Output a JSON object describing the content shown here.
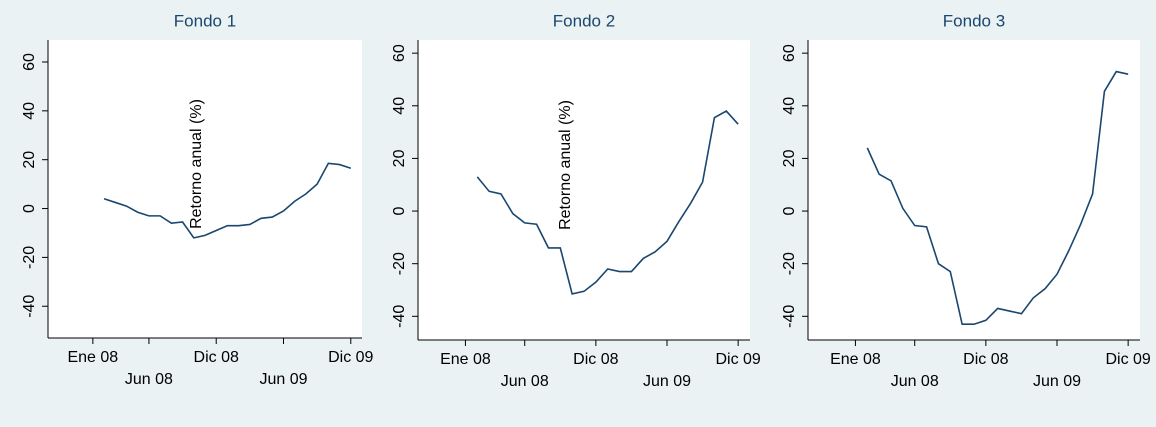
{
  "chart_data": [
    {
      "type": "line",
      "title": "Fondo 1",
      "y_label": "Retorno anual (%)",
      "x": [
        "2008-02",
        "2008-03",
        "2008-04",
        "2008-05",
        "2008-06",
        "2008-07",
        "2008-08",
        "2008-09",
        "2008-10",
        "2008-11",
        "2008-12",
        "2009-01",
        "2009-02",
        "2009-03",
        "2009-04",
        "2009-05",
        "2009-06",
        "2009-07",
        "2009-08",
        "2009-09",
        "2009-10",
        "2009-11",
        "2009-12"
      ],
      "series": [
        {
          "color": "#1a476f",
          "values": [
            4,
            2.5,
            1,
            -1.5,
            -3,
            -3,
            -6,
            -5.5,
            -12,
            -11,
            -9,
            -7,
            -7,
            -6.5,
            -4,
            -3.5,
            -1,
            3,
            6,
            10,
            18.5,
            18,
            16.5
          ]
        }
      ],
      "xlim": [
        "2007-09",
        "2010-01"
      ],
      "xticks": [
        {
          "value": "2008-01",
          "label": "Ene 08"
        },
        {
          "value": "2008-06",
          "label": "Jun 08"
        },
        {
          "value": "2008-12",
          "label": "Dic 08"
        },
        {
          "value": "2009-06",
          "label": "Jun 09"
        },
        {
          "value": "2009-12",
          "label": "Dic 09"
        }
      ],
      "ylim": [
        -53,
        69
      ],
      "yticks": [
        -40,
        -20,
        0,
        20,
        40,
        60
      ],
      "grid": false
    },
    {
      "type": "line",
      "title": "Fondo 2",
      "y_label": "Retorno anual (%)",
      "x": [
        "2008-02",
        "2008-03",
        "2008-04",
        "2008-05",
        "2008-06",
        "2008-07",
        "2008-08",
        "2008-09",
        "2008-10",
        "2008-11",
        "2008-12",
        "2009-01",
        "2009-02",
        "2009-03",
        "2009-04",
        "2009-05",
        "2009-06",
        "2009-07",
        "2009-08",
        "2009-09",
        "2009-10",
        "2009-11",
        "2009-12"
      ],
      "series": [
        {
          "color": "#1a476f",
          "values": [
            13,
            7.5,
            6.5,
            -1,
            -4.5,
            -5,
            -14,
            -14,
            -31.5,
            -30.5,
            -27,
            -22,
            -23,
            -23,
            -18,
            -15.5,
            -11.5,
            -4,
            3,
            11,
            35.5,
            38,
            33
          ]
        }
      ],
      "xlim": [
        "2007-09",
        "2010-01"
      ],
      "xticks": [
        {
          "value": "2008-01",
          "label": "Ene 08"
        },
        {
          "value": "2008-06",
          "label": "Jun 08"
        },
        {
          "value": "2008-12",
          "label": "Dic 08"
        },
        {
          "value": "2009-06",
          "label": "Jun 09"
        },
        {
          "value": "2009-12",
          "label": "Dic 09"
        }
      ],
      "ylim": [
        -49,
        65
      ],
      "yticks": [
        -40,
        -20,
        0,
        20,
        40,
        60
      ],
      "grid": false
    },
    {
      "type": "line",
      "title": "Fondo 3",
      "x": [
        "2008-02",
        "2008-03",
        "2008-04",
        "2008-05",
        "2008-06",
        "2008-07",
        "2008-08",
        "2008-09",
        "2008-10",
        "2008-11",
        "2008-12",
        "2009-01",
        "2009-02",
        "2009-03",
        "2009-04",
        "2009-05",
        "2009-06",
        "2009-07",
        "2009-08",
        "2009-09",
        "2009-10",
        "2009-11",
        "2009-12"
      ],
      "series": [
        {
          "color": "#1a476f",
          "values": [
            24,
            14,
            11.5,
            1,
            -5.5,
            -6,
            -20,
            -23,
            -43,
            -43,
            -41.5,
            -37,
            -38,
            -39,
            -33,
            -29.5,
            -24,
            -15,
            -5,
            6.5,
            45.5,
            53,
            52
          ]
        }
      ],
      "xlim": [
        "2007-09",
        "2010-01"
      ],
      "xticks": [
        {
          "value": "2008-01",
          "label": "Ene 08"
        },
        {
          "value": "2008-06",
          "label": "Jun 08"
        },
        {
          "value": "2008-12",
          "label": "Dic 08"
        },
        {
          "value": "2009-06",
          "label": "Jun 09"
        },
        {
          "value": "2009-12",
          "label": "Dic 09"
        }
      ],
      "ylim": [
        -49,
        65
      ],
      "yticks": [
        -40,
        -20,
        0,
        20,
        40,
        60
      ],
      "grid": false
    }
  ]
}
